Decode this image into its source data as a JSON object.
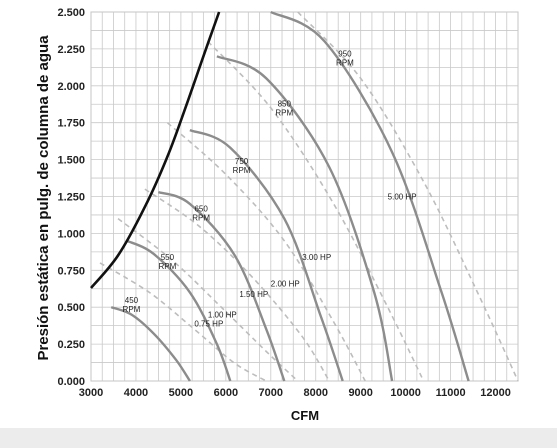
{
  "chart_data": {
    "type": "line",
    "xlabel": "CFM",
    "ylabel": "Presión estática en pulg. de columna de agua",
    "xlim": [
      3000,
      12500
    ],
    "ylim": [
      0,
      2.5
    ],
    "x_ticks": [
      "3000",
      "4000",
      "5000",
      "6000",
      "7000",
      "8000",
      "9000",
      "10000",
      "11000",
      "12000"
    ],
    "y_ticks": [
      "0.000",
      "0.250",
      "0.500",
      "0.750",
      "1.000",
      "1.250",
      "1.500",
      "1.750",
      "2.000",
      "2.250",
      "2.500"
    ],
    "grid": true,
    "colors": {
      "boundary": "#111111",
      "rpm": "#8c8c8c",
      "hp": "#bdbdbd"
    },
    "boundary": {
      "x": [
        3000,
        3600,
        4200,
        4700,
        5100,
        5500,
        5850
      ],
      "y": [
        0.63,
        0.85,
        1.18,
        1.52,
        1.85,
        2.2,
        2.5
      ]
    },
    "rpm_curves": [
      {
        "name": "450 RPM",
        "label_lines": [
          "450",
          "RPM"
        ],
        "label_at": [
          3900,
          0.53
        ],
        "x": [
          3450,
          3900,
          4400,
          4900,
          5200
        ],
        "y": [
          0.5,
          0.45,
          0.32,
          0.14,
          0.0
        ]
      },
      {
        "name": "550 RPM",
        "label_lines": [
          "550",
          "RPM"
        ],
        "label_at": [
          4700,
          0.82
        ],
        "x": [
          3800,
          4400,
          5200,
          5800,
          6100
        ],
        "y": [
          0.95,
          0.86,
          0.6,
          0.25,
          0.0
        ]
      },
      {
        "name": "650 RPM",
        "label_lines": [
          "650",
          "RPM"
        ],
        "label_at": [
          5450,
          1.15
        ],
        "x": [
          4500,
          5200,
          6200,
          6900,
          7300
        ],
        "y": [
          1.28,
          1.2,
          0.85,
          0.35,
          0.0
        ]
      },
      {
        "name": "750 RPM",
        "label_lines": [
          "750",
          "RPM"
        ],
        "label_at": [
          6350,
          1.47
        ],
        "x": [
          5200,
          6100,
          7300,
          8100,
          8600
        ],
        "y": [
          1.7,
          1.58,
          1.1,
          0.45,
          0.0
        ]
      },
      {
        "name": "850 RPM",
        "label_lines": [
          "850",
          "RPM"
        ],
        "label_at": [
          7300,
          1.86
        ],
        "x": [
          5800,
          6900,
          8300,
          9300,
          9700
        ],
        "y": [
          2.2,
          2.05,
          1.45,
          0.6,
          0.0
        ]
      },
      {
        "name": "950 RPM",
        "label_lines": [
          "950",
          "RPM"
        ],
        "label_at": [
          8650,
          2.2
        ],
        "x": [
          7000,
          8200,
          9700,
          10800,
          11400
        ],
        "y": [
          2.5,
          2.3,
          1.55,
          0.6,
          0.0
        ]
      }
    ],
    "rpm_extra": [
      {
        "name": "950 RPM continued",
        "x": [
          11400,
          11600,
          12000,
          12500
        ],
        "y": [
          0.0,
          0.0,
          0.0,
          0.0
        ]
      }
    ],
    "hp_curves": [
      {
        "name": "0.75 HP",
        "label": "0.75 HP",
        "label_at": [
          5300,
          0.37
        ],
        "x": [
          3200,
          4300,
          5300,
          6200,
          6900
        ],
        "y": [
          0.8,
          0.6,
          0.35,
          0.12,
          0.0
        ]
      },
      {
        "name": "1.00 HP",
        "label": "1.00 HP",
        "label_at": [
          5600,
          0.43
        ],
        "x": [
          3600,
          4800,
          5900,
          6900,
          7600
        ],
        "y": [
          1.1,
          0.82,
          0.5,
          0.2,
          0.0
        ]
      },
      {
        "name": "1.50 HP",
        "label": "1.50 HP",
        "label_at": [
          6300,
          0.57
        ],
        "x": [
          4200,
          5400,
          6600,
          7700,
          8300
        ],
        "y": [
          1.3,
          1.05,
          0.7,
          0.3,
          0.0
        ]
      },
      {
        "name": "2.00 HP",
        "label": "2.00 HP",
        "label_at": [
          7000,
          0.64
        ],
        "x": [
          4700,
          6000,
          7300,
          8400,
          9100
        ],
        "y": [
          1.75,
          1.4,
          0.95,
          0.4,
          0.0
        ]
      },
      {
        "name": "3.00 HP",
        "label": "3.00 HP",
        "label_at": [
          7700,
          0.82
        ],
        "x": [
          5600,
          7000,
          8400,
          9600,
          10400
        ],
        "y": [
          2.3,
          1.85,
          1.2,
          0.5,
          0.0
        ]
      },
      {
        "name": "5.00 HP",
        "label": "5.00 HP",
        "label_at": [
          9600,
          1.23
        ],
        "x": [
          7600,
          9000,
          10400,
          11600,
          12500
        ],
        "y": [
          2.5,
          2.05,
          1.35,
          0.6,
          0.0
        ]
      }
    ]
  }
}
